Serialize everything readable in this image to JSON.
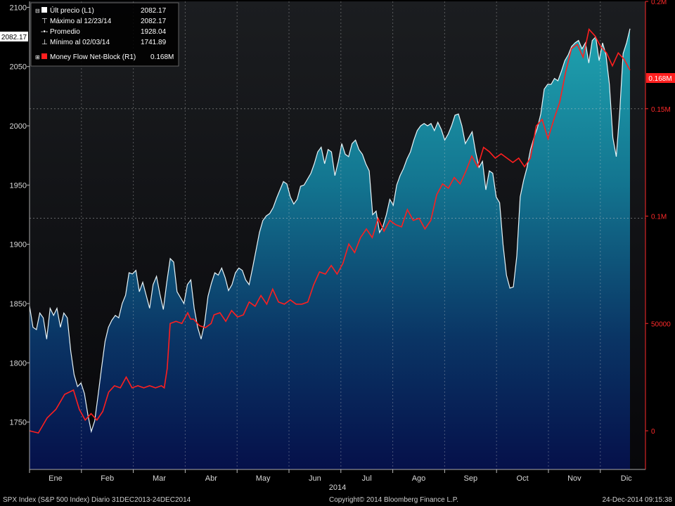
{
  "chart_data": {
    "type": "area",
    "x_axis_year": "2014",
    "months": [
      "Ene",
      "Feb",
      "Mar",
      "Abr",
      "May",
      "Jun",
      "Jul",
      "Ago",
      "Sep",
      "Oct",
      "Nov",
      "Dic"
    ],
    "left_axis": {
      "ticks": [
        1750,
        1800,
        1850,
        1900,
        1950,
        2000,
        2050,
        2100
      ],
      "range": [
        1710,
        2105
      ]
    },
    "right_axis": {
      "ticks": [
        "0",
        "50000",
        "0.1M",
        "0.15M",
        "0.2M"
      ],
      "tick_values": [
        0,
        50000,
        100000,
        150000,
        200000
      ],
      "range": [
        -18000,
        200000
      ]
    },
    "legend": [
      {
        "marker": "square-white",
        "label": "Últ precio (L1)",
        "value": "2082.17"
      },
      {
        "marker": "max",
        "label": "Máximo al 12/23/14",
        "value": "2082.17"
      },
      {
        "marker": "avg",
        "label": "Promedio",
        "value": "1928.04"
      },
      {
        "marker": "min",
        "label": "Mínimo al 02/03/14",
        "value": "1741.89"
      },
      {
        "marker": "square-red",
        "label": "Money Flow Net-Block (R1)",
        "value": "0.168M"
      }
    ],
    "last_price_label": "2082.17",
    "last_flow_label": "0.168M",
    "gridline_left_value": 1922,
    "gridline_right_value": 150000,
    "series": [
      {
        "name": "SPX Index price (L1)",
        "axis": "left",
        "points": [
          [
            0,
            1848
          ],
          [
            1,
            1830
          ],
          [
            2,
            1828
          ],
          [
            3,
            1842
          ],
          [
            4,
            1838
          ],
          [
            5,
            1820
          ],
          [
            6,
            1846
          ],
          [
            7,
            1840
          ],
          [
            8,
            1846
          ],
          [
            9,
            1830
          ],
          [
            10,
            1842
          ],
          [
            11,
            1838
          ],
          [
            12,
            1810
          ],
          [
            13,
            1790
          ],
          [
            14,
            1780
          ],
          [
            15,
            1783
          ],
          [
            16,
            1774
          ],
          [
            17,
            1756
          ],
          [
            18,
            1742
          ],
          [
            19,
            1751
          ],
          [
            20,
            1773
          ],
          [
            21,
            1796
          ],
          [
            22,
            1818
          ],
          [
            23,
            1830
          ],
          [
            24,
            1836
          ],
          [
            25,
            1840
          ],
          [
            26,
            1838
          ],
          [
            27,
            1850
          ],
          [
            28,
            1857
          ],
          [
            29,
            1876
          ],
          [
            30,
            1875
          ],
          [
            31,
            1878
          ],
          [
            32,
            1860
          ],
          [
            33,
            1868
          ],
          [
            34,
            1857
          ],
          [
            35,
            1846
          ],
          [
            36,
            1866
          ],
          [
            37,
            1873
          ],
          [
            38,
            1858
          ],
          [
            39,
            1845
          ],
          [
            40,
            1868
          ],
          [
            41,
            1888
          ],
          [
            42,
            1885
          ],
          [
            43,
            1860
          ],
          [
            44,
            1855
          ],
          [
            45,
            1850
          ],
          [
            46,
            1866
          ],
          [
            47,
            1870
          ],
          [
            48,
            1846
          ],
          [
            49,
            1830
          ],
          [
            50,
            1820
          ],
          [
            51,
            1833
          ],
          [
            52,
            1856
          ],
          [
            53,
            1867
          ],
          [
            54,
            1876
          ],
          [
            55,
            1874
          ],
          [
            56,
            1880
          ],
          [
            57,
            1872
          ],
          [
            58,
            1861
          ],
          [
            59,
            1866
          ],
          [
            60,
            1876
          ],
          [
            61,
            1880
          ],
          [
            62,
            1878
          ],
          [
            63,
            1870
          ],
          [
            64,
            1866
          ],
          [
            65,
            1880
          ],
          [
            66,
            1895
          ],
          [
            67,
            1910
          ],
          [
            68,
            1920
          ],
          [
            69,
            1924
          ],
          [
            70,
            1926
          ],
          [
            71,
            1931
          ],
          [
            72,
            1939
          ],
          [
            73,
            1946
          ],
          [
            74,
            1953
          ],
          [
            75,
            1951
          ],
          [
            76,
            1940
          ],
          [
            77,
            1934
          ],
          [
            78,
            1938
          ],
          [
            79,
            1949
          ],
          [
            80,
            1950
          ],
          [
            81,
            1955
          ],
          [
            82,
            1960
          ],
          [
            83,
            1968
          ],
          [
            84,
            1978
          ],
          [
            85,
            1982
          ],
          [
            86,
            1968
          ],
          [
            87,
            1980
          ],
          [
            88,
            1978
          ],
          [
            89,
            1958
          ],
          [
            90,
            1970
          ],
          [
            91,
            1985
          ],
          [
            92,
            1976
          ],
          [
            93,
            1974
          ],
          [
            94,
            1985
          ],
          [
            95,
            1988
          ],
          [
            96,
            1980
          ],
          [
            97,
            1976
          ],
          [
            98,
            1968
          ],
          [
            99,
            1962
          ],
          [
            100,
            1925
          ],
          [
            101,
            1928
          ],
          [
            102,
            1910
          ],
          [
            103,
            1915
          ],
          [
            104,
            1925
          ],
          [
            105,
            1938
          ],
          [
            106,
            1933
          ],
          [
            107,
            1950
          ],
          [
            108,
            1958
          ],
          [
            109,
            1964
          ],
          [
            110,
            1972
          ],
          [
            111,
            1978
          ],
          [
            112,
            1988
          ],
          [
            113,
            1996
          ],
          [
            114,
            2000
          ],
          [
            115,
            2002
          ],
          [
            116,
            2000
          ],
          [
            117,
            2002
          ],
          [
            118,
            1996
          ],
          [
            119,
            2003
          ],
          [
            120,
            1997
          ],
          [
            121,
            1988
          ],
          [
            122,
            1993
          ],
          [
            123,
            2000
          ],
          [
            124,
            2009
          ],
          [
            125,
            2010
          ],
          [
            126,
            2000
          ],
          [
            127,
            1985
          ],
          [
            128,
            1990
          ],
          [
            129,
            1995
          ],
          [
            130,
            1978
          ],
          [
            131,
            1965
          ],
          [
            132,
            1970
          ],
          [
            133,
            1946
          ],
          [
            134,
            1962
          ],
          [
            135,
            1960
          ],
          [
            136,
            1940
          ],
          [
            137,
            1935
          ],
          [
            138,
            1900
          ],
          [
            139,
            1874
          ],
          [
            140,
            1863
          ],
          [
            141,
            1864
          ],
          [
            142,
            1890
          ],
          [
            143,
            1940
          ],
          [
            144,
            1954
          ],
          [
            145,
            1965
          ],
          [
            146,
            1980
          ],
          [
            147,
            1990
          ],
          [
            148,
            1998
          ],
          [
            149,
            2010
          ],
          [
            150,
            2031
          ],
          [
            151,
            2035
          ],
          [
            152,
            2035
          ],
          [
            153,
            2040
          ],
          [
            154,
            2038
          ],
          [
            155,
            2046
          ],
          [
            156,
            2055
          ],
          [
            157,
            2060
          ],
          [
            158,
            2067
          ],
          [
            159,
            2070
          ],
          [
            160,
            2072
          ],
          [
            161,
            2065
          ],
          [
            162,
            2070
          ],
          [
            163,
            2053
          ],
          [
            164,
            2072
          ],
          [
            165,
            2075
          ],
          [
            166,
            2055
          ],
          [
            167,
            2070
          ],
          [
            168,
            2060
          ],
          [
            169,
            2035
          ],
          [
            170,
            1990
          ],
          [
            171,
            1974
          ],
          [
            172,
            2012
          ],
          [
            173,
            2061
          ],
          [
            174,
            2070
          ],
          [
            175,
            2082
          ]
        ]
      },
      {
        "name": "Money Flow Net-Block (R1)",
        "axis": "right",
        "points": [
          [
            0,
            0
          ],
          [
            3,
            -1000
          ],
          [
            6,
            6000
          ],
          [
            9,
            10000
          ],
          [
            12,
            17000
          ],
          [
            15,
            19000
          ],
          [
            17,
            10000
          ],
          [
            19,
            5000
          ],
          [
            21,
            8000
          ],
          [
            23,
            5000
          ],
          [
            25,
            9000
          ],
          [
            27,
            18000
          ],
          [
            29,
            21000
          ],
          [
            31,
            20000
          ],
          [
            33,
            25000
          ],
          [
            35,
            20000
          ],
          [
            37,
            21000
          ],
          [
            39,
            20000
          ],
          [
            41,
            21000
          ],
          [
            43,
            20000
          ],
          [
            45,
            21000
          ],
          [
            46,
            20000
          ],
          [
            47,
            29000
          ],
          [
            48,
            50000
          ],
          [
            50,
            51000
          ],
          [
            52,
            50000
          ],
          [
            54,
            55000
          ],
          [
            55,
            52000
          ],
          [
            56,
            52000
          ],
          [
            58,
            49000
          ],
          [
            60,
            48000
          ],
          [
            62,
            50000
          ],
          [
            63,
            54000
          ],
          [
            65,
            55000
          ],
          [
            67,
            51000
          ],
          [
            69,
            56000
          ],
          [
            71,
            53000
          ],
          [
            73,
            54000
          ],
          [
            75,
            60000
          ],
          [
            77,
            58000
          ],
          [
            79,
            63000
          ],
          [
            81,
            59000
          ],
          [
            83,
            66000
          ],
          [
            85,
            60000
          ],
          [
            87,
            59000
          ],
          [
            89,
            61000
          ],
          [
            91,
            59000
          ],
          [
            93,
            59000
          ],
          [
            95,
            60000
          ],
          [
            97,
            68000
          ],
          [
            99,
            74000
          ],
          [
            101,
            73000
          ],
          [
            103,
            77000
          ],
          [
            105,
            73000
          ],
          [
            107,
            78000
          ],
          [
            109,
            87000
          ],
          [
            111,
            83000
          ],
          [
            113,
            90000
          ],
          [
            115,
            94000
          ],
          [
            117,
            90000
          ],
          [
            119,
            99000
          ],
          [
            121,
            93000
          ],
          [
            123,
            98000
          ],
          [
            125,
            96000
          ],
          [
            127,
            95000
          ],
          [
            129,
            103000
          ],
          [
            131,
            98000
          ],
          [
            133,
            99000
          ],
          [
            135,
            94000
          ],
          [
            137,
            98000
          ],
          [
            139,
            110000
          ],
          [
            141,
            115000
          ],
          [
            143,
            113000
          ],
          [
            145,
            118000
          ],
          [
            147,
            115000
          ],
          [
            149,
            121000
          ],
          [
            151,
            128000
          ],
          [
            153,
            123000
          ],
          [
            155,
            132000
          ],
          [
            157,
            130000
          ],
          [
            159,
            127000
          ],
          [
            161,
            129000
          ],
          [
            163,
            127000
          ],
          [
            165,
            125000
          ],
          [
            167,
            127000
          ],
          [
            169,
            123000
          ],
          [
            171,
            127000
          ],
          [
            173,
            142000
          ],
          [
            175,
            145000
          ],
          [
            177,
            136000
          ],
          [
            179,
            145000
          ],
          [
            181,
            153000
          ],
          [
            183,
            167000
          ],
          [
            185,
            178000
          ],
          [
            187,
            180000
          ],
          [
            189,
            174000
          ],
          [
            191,
            187000
          ],
          [
            193,
            184000
          ],
          [
            195,
            179000
          ],
          [
            197,
            176000
          ],
          [
            199,
            170000
          ],
          [
            201,
            176000
          ],
          [
            203,
            173000
          ],
          [
            205,
            168000
          ]
        ]
      }
    ],
    "footer": {
      "left": "SPX Index (S&P 500 Index)  Diario 31DEC2013-24DEC2014",
      "center": "Copyright© 2014 Bloomberg Finance L.P.",
      "right": "24-Dec-2014  09:15:38"
    }
  }
}
